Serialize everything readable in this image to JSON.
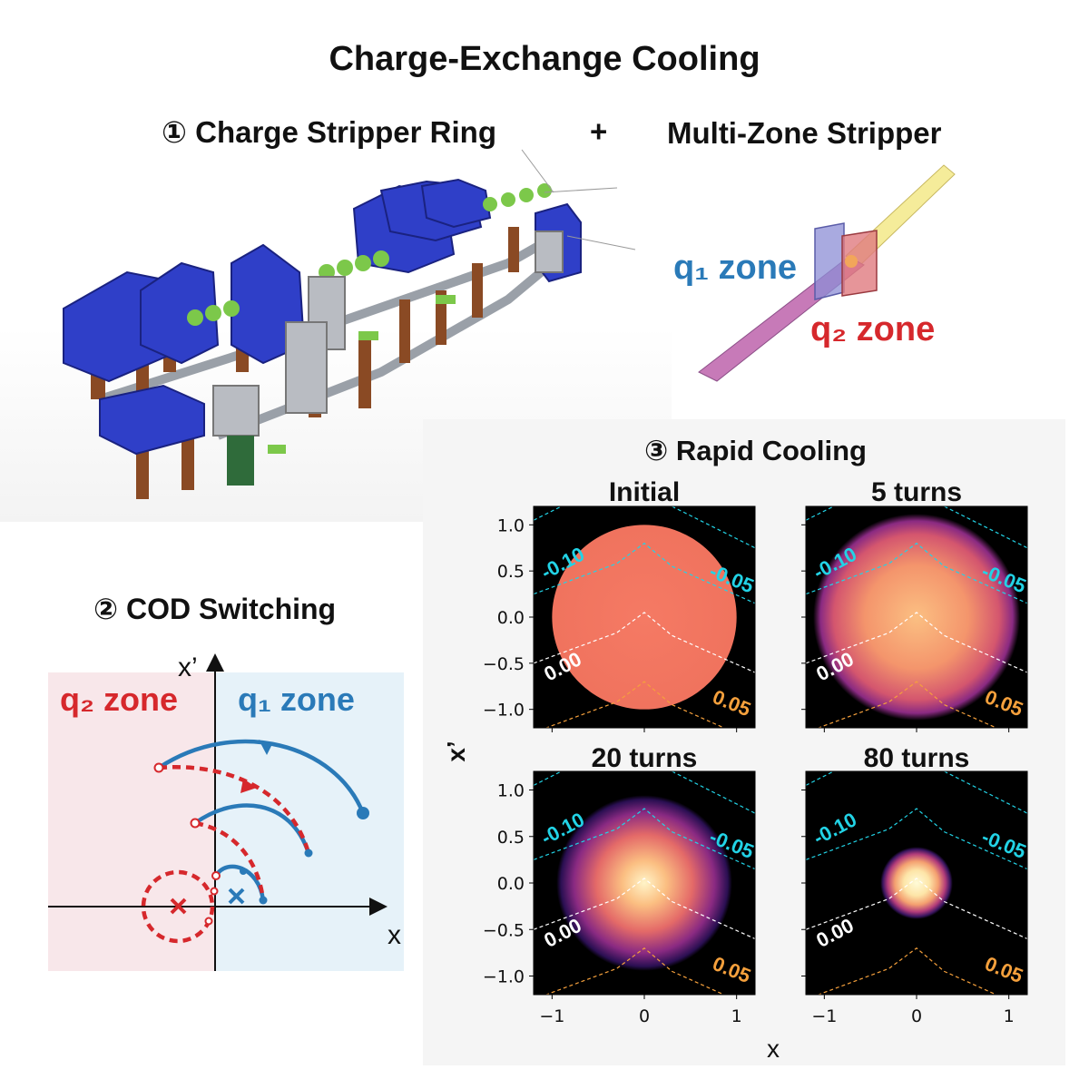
{
  "title": "Charge-Exchange Cooling",
  "section1": {
    "ring_heading": "① Charge Stripper Ring",
    "plus": "+",
    "stripper_heading": "Multi-Zone Stripper",
    "q1_label": "q₁ zone",
    "q2_label": "q₂ zone"
  },
  "section2": {
    "heading": "② COD Switching",
    "q2_label": "q₂ zone",
    "q1_label": "q₁ zone",
    "x_axis": "x",
    "y_axis": "x’"
  },
  "section3": {
    "heading": "③ Rapid Cooling",
    "x_axis": "x",
    "y_axis": "x’",
    "contour_labels": [
      "-0.10",
      "-0.05",
      "0.00",
      "0.05"
    ],
    "contour_colors": {
      "-0.10": "#22d3e6",
      "-0.05": "#22d3e6",
      "0.00": "#ffffff",
      "0.05": "#f5a03c"
    }
  },
  "colors": {
    "q1": "#2a7ab8",
    "q2": "#d6282c",
    "q1_bg": "#e6f2f9",
    "q2_bg": "#f8e7ea",
    "magnet": "#2f3fc8"
  },
  "chart_data": [
    {
      "type": "heatmap",
      "title": "Initial",
      "xlim": [
        -1.2,
        1.2
      ],
      "ylim": [
        -1.2,
        1.2
      ],
      "xticks": [
        "−1",
        "0",
        "1"
      ],
      "yticks": [
        "1.0",
        "0.5",
        "0.0",
        "−0.5",
        "−1.0"
      ],
      "beam_profile": "uniform disk",
      "beam_radius": 1.0
    },
    {
      "type": "heatmap",
      "title": "5 turns",
      "xlim": [
        -1.2,
        1.2
      ],
      "ylim": [
        -1.2,
        1.2
      ],
      "xticks": [
        "−1",
        "0",
        "1"
      ],
      "yticks": [
        "1.0",
        "0.5",
        "0.0",
        "−0.5",
        "−1.0"
      ],
      "beam_profile": "gaussian",
      "beam_radius": 1.0
    },
    {
      "type": "heatmap",
      "title": "20 turns",
      "xlim": [
        -1.2,
        1.2
      ],
      "ylim": [
        -1.2,
        1.2
      ],
      "xticks": [
        "−1",
        "0",
        "1"
      ],
      "yticks": [
        "1.0",
        "0.5",
        "0.0",
        "−0.5",
        "−1.0"
      ],
      "beam_profile": "gaussian",
      "beam_radius": 0.85
    },
    {
      "type": "heatmap",
      "title": "80 turns",
      "xlim": [
        -1.2,
        1.2
      ],
      "ylim": [
        -1.2,
        1.2
      ],
      "xticks": [
        "−1",
        "0",
        "1"
      ],
      "yticks": [
        "1.0",
        "0.5",
        "0.0",
        "−0.5",
        "−1.0"
      ],
      "beam_profile": "gaussian",
      "beam_radius": 0.35
    }
  ]
}
